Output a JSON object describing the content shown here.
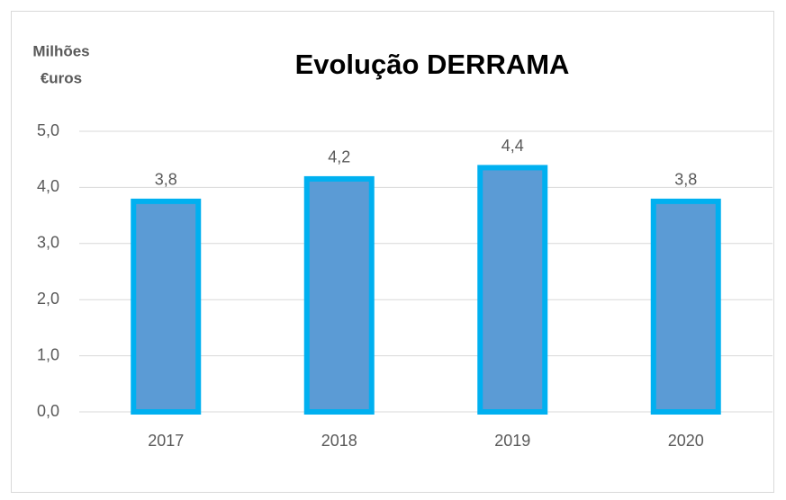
{
  "chart_data": {
    "type": "bar",
    "title": "Evolução  DERRAMA",
    "ylabel": [
      "Milhões",
      "€uros"
    ],
    "categories": [
      "2017",
      "2018",
      "2019",
      "2020"
    ],
    "values": [
      3.8,
      4.2,
      4.4,
      3.8
    ],
    "value_labels": [
      "3,8",
      "4,2",
      "4,4",
      "3,8"
    ],
    "color": "#5b9bd5",
    "edge_color": "#00b0f0",
    "ylim": [
      0,
      5
    ],
    "yticks": [
      {
        "value": 0,
        "label": "0,0"
      },
      {
        "value": 1,
        "label": "1,0"
      },
      {
        "value": 2,
        "label": "2,0"
      },
      {
        "value": 3,
        "label": "3,0"
      },
      {
        "value": 4,
        "label": "4,0"
      },
      {
        "value": 5,
        "label": "5,0"
      }
    ],
    "grid": true
  }
}
